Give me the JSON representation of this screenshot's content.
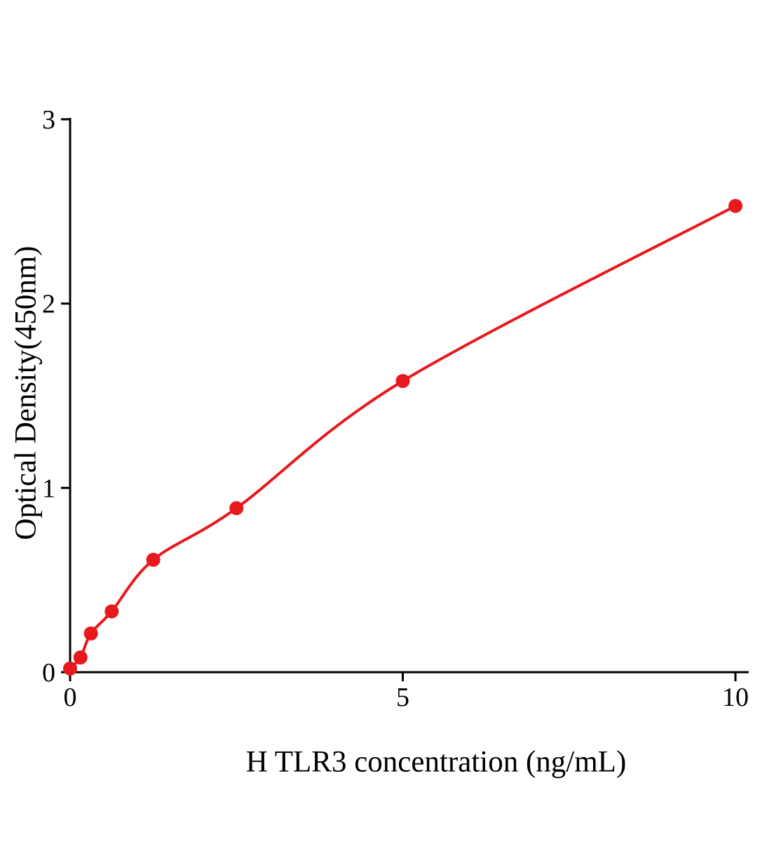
{
  "chart_data": {
    "type": "scatter",
    "title": "",
    "xlabel": "H TLR3 concentration (ng/mL)",
    "ylabel": "Optical Density(450nm)",
    "x": [
      0,
      0.156,
      0.3125,
      0.625,
      1.25,
      2.5,
      5,
      10
    ],
    "y": [
      0.02,
      0.08,
      0.21,
      0.33,
      0.61,
      0.89,
      1.58,
      2.53
    ],
    "xlim": [
      0,
      10.2
    ],
    "ylim": [
      0,
      3
    ],
    "x_ticks": [
      0,
      5,
      10
    ],
    "y_ticks": [
      0,
      1,
      2,
      3
    ],
    "grid": false,
    "legend": "none",
    "fit_line": true,
    "marker": "circle",
    "colors": {
      "line": "#e8191c",
      "marker": "#e8191c",
      "axis": "#000000",
      "text": "#000000",
      "background": "#ffffff"
    }
  }
}
